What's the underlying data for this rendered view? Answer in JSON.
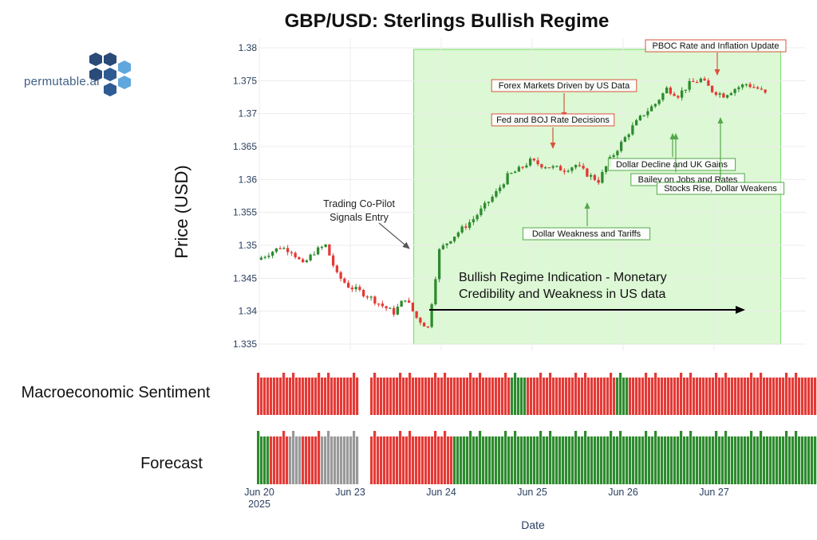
{
  "title": "GBP/USD: Sterlings Bullish Regime",
  "logo_text": "permutable.ai",
  "colors": {
    "up": "#2e8b2e",
    "down": "#e43a36",
    "neutral": "#999999",
    "regime_fill": "#dcf8d4",
    "regime_edge": "#86e07a",
    "grid": "#ececec",
    "axis_text": "#2a3f5f",
    "annotation_red": "#d9533c",
    "annotation_green": "#55a84a"
  },
  "chart_data": [
    {
      "type": "candlestick",
      "title": "GBP/USD: Sterlings Bullish Regime",
      "ylabel": "Price (USD)",
      "ylim": [
        1.335,
        1.38
      ],
      "yticks": [
        "1.38",
        "1.375",
        "1.37",
        "1.365",
        "1.36",
        "1.355",
        "1.35",
        "1.345",
        "1.34",
        "1.335"
      ],
      "xlabel": "Date",
      "xticks": [
        {
          "label": "Jun 20",
          "sublabel": "2025"
        },
        {
          "label": "Jun 23",
          "sublabel": ""
        },
        {
          "label": "Jun 24",
          "sublabel": ""
        },
        {
          "label": "Jun 25",
          "sublabel": ""
        },
        {
          "label": "Jun 26",
          "sublabel": ""
        },
        {
          "label": "Jun 27",
          "sublabel": ""
        }
      ],
      "x_range_days": [
        "Jun 20 00:00",
        "Jun 27 14:00"
      ],
      "weekend_gap": "Jun 21 – Jun 22 (not plotted)",
      "series_close": [
        [
          "Jun 20 00:00",
          1.3478
        ],
        [
          "Jun 20 03:00",
          1.3488
        ],
        [
          "Jun 20 06:00",
          1.3497
        ],
        [
          "Jun 20 09:00",
          1.3492
        ],
        [
          "Jun 20 12:00",
          1.347
        ],
        [
          "Jun 20 15:00",
          1.349
        ],
        [
          "Jun 20 18:00",
          1.35
        ],
        [
          "Jun 20 21:00",
          1.3455
        ],
        [
          "Jun 23 00:00",
          1.3438
        ],
        [
          "Jun 23 03:00",
          1.343
        ],
        [
          "Jun 23 06:00",
          1.342
        ],
        [
          "Jun 23 09:00",
          1.3408
        ],
        [
          "Jun 23 12:00",
          1.3398
        ],
        [
          "Jun 23 15:00",
          1.342
        ],
        [
          "Jun 23 18:00",
          1.339
        ],
        [
          "Jun 23 21:00",
          1.3375
        ],
        [
          "Jun 24 00:00",
          1.3492
        ],
        [
          "Jun 24 03:00",
          1.351
        ],
        [
          "Jun 24 06:00",
          1.3525
        ],
        [
          "Jun 24 09:00",
          1.354
        ],
        [
          "Jun 24 12:00",
          1.356
        ],
        [
          "Jun 24 15:00",
          1.358
        ],
        [
          "Jun 24 18:00",
          1.3605
        ],
        [
          "Jun 24 21:00",
          1.3615
        ],
        [
          "Jun 25 00:00",
          1.3628
        ],
        [
          "Jun 25 03:00",
          1.3622
        ],
        [
          "Jun 25 06:00",
          1.3618
        ],
        [
          "Jun 25 09:00",
          1.3615
        ],
        [
          "Jun 25 12:00",
          1.3622
        ],
        [
          "Jun 25 15:00",
          1.3608
        ],
        [
          "Jun 25 18:00",
          1.3598
        ],
        [
          "Jun 25 21:00",
          1.363
        ],
        [
          "Jun 26 00:00",
          1.3655
        ],
        [
          "Jun 26 03:00",
          1.368
        ],
        [
          "Jun 26 06:00",
          1.37
        ],
        [
          "Jun 26 09:00",
          1.3715
        ],
        [
          "Jun 26 12:00",
          1.3738
        ],
        [
          "Jun 26 15:00",
          1.3728
        ],
        [
          "Jun 26 18:00",
          1.3745
        ],
        [
          "Jun 26 21:00",
          1.3752
        ],
        [
          "Jun 27 00:00",
          1.3735
        ],
        [
          "Jun 27 03:00",
          1.3728
        ],
        [
          "Jun 27 06:00",
          1.3738
        ],
        [
          "Jun 27 09:00",
          1.3745
        ],
        [
          "Jun 27 12:00",
          1.3738
        ],
        [
          "Jun 27 14:00",
          1.373
        ]
      ],
      "regime_window": [
        "Jun 23 18:00",
        "Jun 27 18:00"
      ],
      "annotations": [
        {
          "text": "PBOC Rate and Inflation Update",
          "style": "red"
        },
        {
          "text": "Forex Markets Driven by US Data",
          "style": "red"
        },
        {
          "text": "Fed and BOJ Rate Decisions",
          "style": "red"
        },
        {
          "text": "Dollar Decline and UK Gains",
          "style": "green"
        },
        {
          "text": "Bailey on Jobs and Rates",
          "style": "green"
        },
        {
          "text": "Stocks Rise, Dollar Weakens",
          "style": "green"
        },
        {
          "text": "Dollar Weakness and Tariffs",
          "style": "green"
        }
      ],
      "entry_note": [
        "Trading Co-Pilot",
        "Signals Entry"
      ],
      "regime_note": [
        "Bullish Regime Indication - Monetary",
        "Credibility and Weakness in US data"
      ]
    },
    {
      "type": "bar",
      "title": "Macroeconomic Sentiment",
      "sequence": [
        [
          "red",
          10
        ],
        [
          "red",
          2
        ],
        [
          "red",
          4
        ],
        [
          "red",
          16
        ],
        [
          "gap",
          1
        ],
        [
          "red",
          44
        ],
        [
          "green",
          5
        ],
        [
          "red",
          28
        ],
        [
          "green",
          4
        ],
        [
          "red",
          64
        ]
      ]
    },
    {
      "type": "bar",
      "title": "Forecast",
      "sequence": [
        [
          "green",
          4
        ],
        [
          "red",
          6
        ],
        [
          "neutral",
          4
        ],
        [
          "red",
          6
        ],
        [
          "neutral",
          12
        ],
        [
          "gap",
          1
        ],
        [
          "red",
          26
        ],
        [
          "green",
          132
        ]
      ]
    }
  ]
}
